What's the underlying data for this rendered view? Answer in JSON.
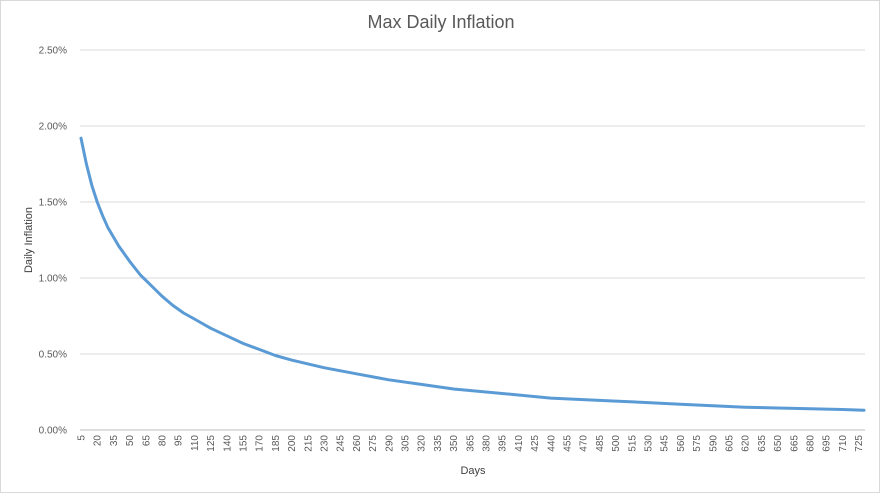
{
  "chart_data": {
    "type": "line",
    "title": "Max Daily Inflation",
    "xlabel": "Days",
    "ylabel": "Daily Inflation",
    "ylim": [
      0,
      0.025
    ],
    "y_ticks": [
      0,
      0.005,
      0.01,
      0.015,
      0.02,
      0.025
    ],
    "y_tick_labels": [
      "0.00%",
      "0.50%",
      "1.00%",
      "1.50%",
      "2.00%",
      "2.50%"
    ],
    "x_start": 5,
    "x_step": 5,
    "x_end": 730,
    "x_tick_step": 15,
    "grid": true,
    "legend": "none",
    "colors": {
      "series": "#5b9bd5",
      "grid": "#d9d9d9",
      "text": "#595959"
    },
    "series": [
      {
        "x": [
          5,
          10,
          15,
          20,
          25,
          30,
          40,
          50,
          60,
          70,
          80,
          90,
          100,
          110,
          125,
          140,
          155,
          170,
          185,
          200,
          230,
          260,
          290,
          320,
          350,
          380,
          410,
          440,
          470,
          500,
          530,
          560,
          590,
          620,
          650,
          680,
          710,
          730
        ],
        "values": [
          0.0192,
          0.0175,
          0.0161,
          0.015,
          0.0141,
          0.0133,
          0.0121,
          0.0111,
          0.0102,
          0.0095,
          0.0088,
          0.0082,
          0.0077,
          0.0073,
          0.0067,
          0.0062,
          0.0057,
          0.0053,
          0.0049,
          0.0046,
          0.0041,
          0.0037,
          0.0033,
          0.003,
          0.0027,
          0.0025,
          0.0023,
          0.0021,
          0.002,
          0.0019,
          0.0018,
          0.0017,
          0.0016,
          0.0015,
          0.00145,
          0.0014,
          0.00135,
          0.0013
        ]
      }
    ]
  }
}
